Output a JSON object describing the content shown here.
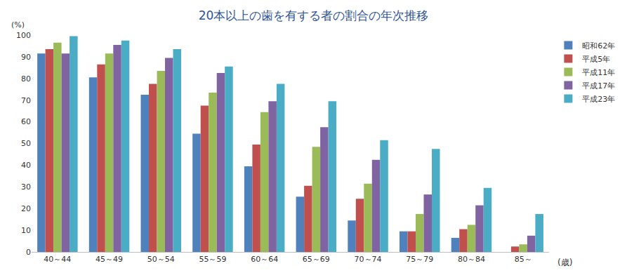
{
  "chart_data": {
    "type": "bar",
    "title": "20本以上の歯を有する者の割合の年次推移",
    "x_label": "(歳)",
    "y_label": "(%)",
    "categories": [
      "40～44",
      "45～49",
      "50～54",
      "55～59",
      "60～64",
      "65～69",
      "70～74",
      "75～79",
      "80～84",
      "85～"
    ],
    "series": [
      {
        "name": "昭和62年",
        "color": "#4f81bd",
        "values": [
          91.5,
          80.5,
          72.5,
          54.5,
          39.5,
          25.5,
          14.5,
          9.5,
          6.5,
          null
        ]
      },
      {
        "name": "平成5年",
        "color": "#c0504d",
        "values": [
          93.5,
          86.5,
          77.5,
          67.5,
          49.5,
          30.5,
          24.5,
          9.5,
          10.5,
          2.5
        ]
      },
      {
        "name": "平成11年",
        "color": "#9bbb59",
        "values": [
          96.5,
          91.5,
          83.5,
          73.5,
          64.5,
          48.5,
          31.5,
          17.5,
          12.5,
          3.5
        ]
      },
      {
        "name": "平成17年",
        "color": "#8064a2",
        "values": [
          91.5,
          95.5,
          89.5,
          82.5,
          69.5,
          57.5,
          42.5,
          26.5,
          21.5,
          7.5
        ]
      },
      {
        "name": "平成23年",
        "color": "#4bacc6",
        "values": [
          99.5,
          97.5,
          93.5,
          85.5,
          77.5,
          69.5,
          51.5,
          47.5,
          29.5,
          17.5
        ]
      }
    ],
    "ylim": [
      0,
      100
    ],
    "yticks": [
      0,
      10,
      20,
      30,
      40,
      50,
      60,
      70,
      80,
      90,
      100
    ],
    "grid": false,
    "legend": "right"
  }
}
